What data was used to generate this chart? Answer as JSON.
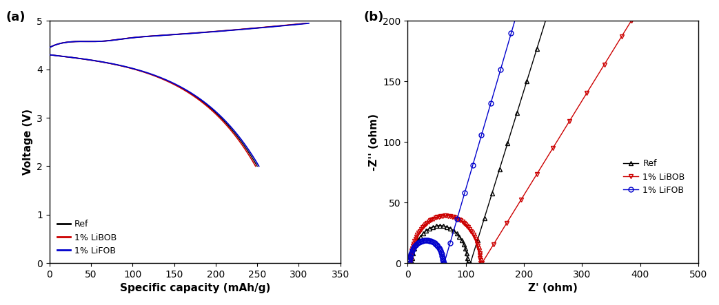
{
  "fig_width": 10.43,
  "fig_height": 4.43,
  "dpi": 100,
  "background_color": "#ffffff",
  "panel_a": {
    "label": "(a)",
    "xlabel": "Specific capacity (mAh/g)",
    "ylabel": "Voltage (V)",
    "xlim": [
      0,
      350
    ],
    "ylim": [
      0,
      5
    ],
    "xticks": [
      0,
      50,
      100,
      150,
      200,
      250,
      300,
      350
    ],
    "yticks": [
      0,
      1,
      2,
      3,
      4,
      5
    ],
    "legend_labels": [
      "Ref",
      "1% LiBOB",
      "1% LiFOB"
    ],
    "legend_colors": [
      "#000000",
      "#cc0000",
      "#0000cc"
    ],
    "line_width": 1.0,
    "charge_start_v": 4.6,
    "charge_end_v": 4.8,
    "charge_x_ref": 310,
    "charge_x_libob": 308,
    "charge_x_lifob": 312,
    "discharge_start_v": 3.8,
    "discharge_end_v": 2.0,
    "discharge_x_ref": 250,
    "discharge_x_libob": 248,
    "discharge_x_lifob": 252
  },
  "panel_b": {
    "label": "(b)",
    "xlabel": "Z' (ohm)",
    "ylabel": "-Z'' (ohm)",
    "xlim": [
      0,
      500
    ],
    "ylim": [
      0,
      200
    ],
    "xticks": [
      0,
      100,
      200,
      300,
      400,
      500
    ],
    "yticks": [
      0,
      50,
      100,
      150,
      200
    ],
    "legend_labels": [
      "Ref",
      "1% LiBOB",
      "1% LiFOB"
    ],
    "legend_colors": [
      "#000000",
      "#cc0000",
      "#0000cc"
    ],
    "marker_ref": "^",
    "marker_libob": "v",
    "marker_lifob": "o",
    "marker_size": 5,
    "line_width": 1.0
  },
  "font_size_label": 11,
  "font_size_tick": 10,
  "font_size_legend": 9,
  "font_size_panel_label": 13
}
